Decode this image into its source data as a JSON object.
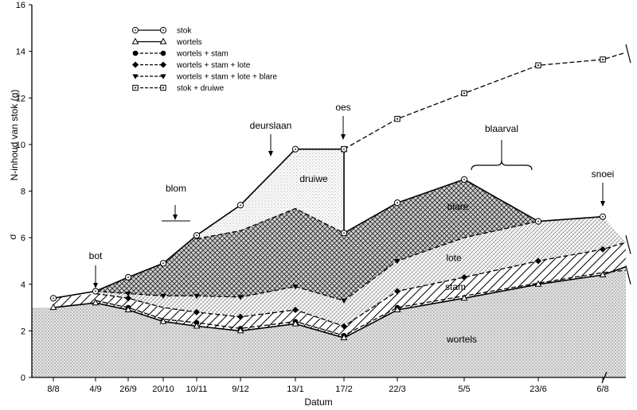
{
  "chart_data": {
    "type": "area",
    "xlabel": "Datum",
    "ylabel": "N-inhoud van stok (g)",
    "ylim": [
      0,
      16
    ],
    "yticks": [
      0,
      2,
      4,
      6,
      8,
      10,
      12,
      14,
      16
    ],
    "categories": [
      "8/8",
      "4/9",
      "26/9",
      "20/10",
      "10/11",
      "9/12",
      "13/1",
      "17/2",
      "22/3",
      "5/5",
      "23/6",
      "6/8"
    ],
    "series": [
      {
        "name": "stok",
        "marker": "circle-dot",
        "dash": "solid",
        "x": [
          "8/8",
          "4/9",
          "26/9",
          "20/10",
          "10/11",
          "9/12",
          "13/1",
          "17/2",
          "22/3",
          "5/5",
          "23/6",
          "6/8"
        ],
        "y": [
          3.4,
          3.7,
          4.3,
          4.9,
          6.1,
          7.4,
          9.8,
          9.8,
          7.5,
          8.5,
          6.7,
          6.9
        ]
      },
      {
        "name": "wortels",
        "marker": "triangle",
        "dash": "solid",
        "x": [
          "8/8",
          "4/9",
          "26/9",
          "20/10",
          "10/11",
          "9/12",
          "13/1",
          "17/2",
          "22/3",
          "5/5",
          "23/6",
          "6/8"
        ],
        "y": [
          3.0,
          3.2,
          2.9,
          2.4,
          2.2,
          2.0,
          2.3,
          1.7,
          2.9,
          3.4,
          4.0,
          4.4
        ]
      },
      {
        "name": "wortels + stam",
        "marker": "filled-circle",
        "dash": "dashed",
        "x": [
          "4/9",
          "26/9",
          "20/10",
          "10/11",
          "9/12",
          "13/1",
          "17/2",
          "22/3",
          "5/5",
          "23/6",
          "6/8"
        ],
        "y": [
          3.3,
          3.0,
          2.5,
          2.35,
          2.1,
          2.4,
          1.8,
          3.0,
          3.5,
          4.05,
          4.5
        ]
      },
      {
        "name": "wortels + stam + lote",
        "marker": "diamond",
        "dash": "dashed",
        "x": [
          "4/9",
          "26/9",
          "20/10",
          "10/11",
          "9/12",
          "13/1",
          "17/2",
          "22/3",
          "5/5",
          "23/6",
          "6/8"
        ],
        "y": [
          3.6,
          3.4,
          3.0,
          2.8,
          2.6,
          2.9,
          2.2,
          3.7,
          4.3,
          5.0,
          5.5
        ]
      },
      {
        "name": "wortels + stam + lote + blare",
        "marker": "filled-triangle-down",
        "dash": "dashed",
        "x": [
          "4/9",
          "26/9",
          "20/10",
          "10/11",
          "9/12",
          "13/1",
          "17/2",
          "22/3",
          "5/5",
          "23/6",
          "6/8"
        ],
        "y": [
          3.7,
          3.6,
          3.5,
          3.5,
          3.45,
          3.9,
          3.3,
          5.0,
          6.0,
          6.7,
          6.9
        ]
      },
      {
        "name": "stok + druiwe",
        "marker": "square-dot",
        "dash": "dashed",
        "x": [
          "10/11",
          "9/12",
          "13/1",
          "17/2",
          "22/3",
          "5/5",
          "23/6",
          "6/8"
        ],
        "y": [
          5.95,
          6.3,
          7.25,
          9.8,
          11.1,
          12.2,
          13.4,
          13.65
        ]
      }
    ],
    "regions": [
      "wortels",
      "stam",
      "lote",
      "blare",
      "druiwe"
    ],
    "annotations": [
      "bot",
      "blom",
      "deurslaan",
      "oes",
      "blaarval",
      "snoei"
    ],
    "legend_position": "top-left",
    "grid": false
  }
}
